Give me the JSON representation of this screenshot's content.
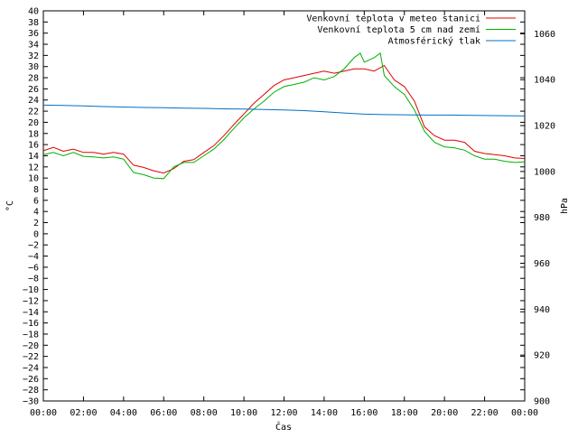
{
  "chart_data": {
    "type": "line",
    "xlabel": "Čas",
    "ylabel_left": "°C",
    "ylabel_right": "hPa",
    "ylim_left": [
      -30,
      40
    ],
    "ylim_right": [
      900,
      1070
    ],
    "xlim": [
      0,
      24
    ],
    "x_ticks": [
      {
        "v": 0,
        "label": "00:00"
      },
      {
        "v": 2,
        "label": "02:00"
      },
      {
        "v": 4,
        "label": "04:00"
      },
      {
        "v": 6,
        "label": "06:00"
      },
      {
        "v": 8,
        "label": "08:00"
      },
      {
        "v": 10,
        "label": "10:00"
      },
      {
        "v": 12,
        "label": "12:00"
      },
      {
        "v": 14,
        "label": "14:00"
      },
      {
        "v": 16,
        "label": "16:00"
      },
      {
        "v": 18,
        "label": "18:00"
      },
      {
        "v": 20,
        "label": "20:00"
      },
      {
        "v": 22,
        "label": "22:00"
      },
      {
        "v": 24,
        "label": "00:00"
      }
    ],
    "y_ticks_left": [
      40,
      38,
      36,
      34,
      32,
      30,
      28,
      26,
      24,
      22,
      20,
      18,
      16,
      14,
      12,
      10,
      8,
      6,
      4,
      2,
      0,
      -2,
      -4,
      -6,
      -8,
      -10,
      -12,
      -14,
      -16,
      -18,
      -20,
      -22,
      -24,
      -26,
      -28,
      -30
    ],
    "y_ticks_right": [
      1060,
      1040,
      1020,
      1000,
      980,
      960,
      940,
      920,
      900
    ],
    "grid": false,
    "legend_position": "top-right",
    "series": [
      {
        "name": "Venkovní teplota v meteo stanici",
        "color": "#e00000",
        "axis": "left",
        "x": [
          0,
          0.5,
          1,
          1.5,
          2,
          2.5,
          3,
          3.5,
          4,
          4.5,
          5,
          5.5,
          6,
          6.5,
          7,
          7.5,
          8,
          8.5,
          9,
          9.5,
          10,
          10.5,
          11,
          11.5,
          12,
          12.5,
          13,
          13.5,
          14,
          14.5,
          15,
          15.5,
          16,
          16.5,
          17,
          17.5,
          18,
          18.5,
          19,
          19.5,
          20,
          20.5,
          21,
          21.5,
          22,
          22.5,
          23,
          23.5,
          24
        ],
        "values": [
          14.9,
          15.5,
          14.8,
          15.2,
          14.6,
          14.6,
          14.3,
          14.6,
          14.3,
          12.3,
          11.9,
          11.3,
          10.9,
          11.7,
          13.0,
          13.3,
          14.6,
          15.8,
          17.6,
          19.6,
          21.5,
          23.4,
          25.0,
          26.6,
          27.6,
          28.0,
          28.4,
          28.8,
          29.2,
          28.8,
          29.2,
          29.6,
          29.6,
          29.2,
          30.2,
          27.6,
          26.4,
          23.8,
          19.2,
          17.6,
          16.8,
          16.8,
          16.4,
          14.8,
          14.4,
          14.2,
          14.0,
          13.6,
          13.5
        ]
      },
      {
        "name": "Venkovní teplota 5 cm nad zemí",
        "color": "#00b000",
        "axis": "left",
        "x": [
          0,
          0.5,
          1,
          1.5,
          2,
          2.5,
          3,
          3.5,
          4,
          4.5,
          5,
          5.5,
          6,
          6.5,
          7,
          7.5,
          8,
          8.5,
          9,
          9.5,
          10,
          10.5,
          11,
          11.5,
          12,
          12.5,
          13,
          13.5,
          14,
          14.5,
          15,
          15.5,
          15.8,
          16,
          16.5,
          16.8,
          17,
          17.5,
          18,
          18.5,
          19,
          19.5,
          20,
          20.5,
          21,
          21.5,
          22,
          22.5,
          23,
          23.5,
          24
        ],
        "values": [
          14.2,
          14.6,
          14.0,
          14.6,
          13.9,
          13.8,
          13.6,
          13.8,
          13.4,
          11.0,
          10.6,
          10.0,
          9.9,
          12.0,
          12.8,
          12.8,
          14.0,
          15.2,
          16.9,
          18.9,
          20.8,
          22.4,
          23.8,
          25.4,
          26.4,
          26.8,
          27.2,
          28.0,
          27.6,
          28.2,
          29.6,
          31.6,
          32.4,
          30.8,
          31.6,
          32.4,
          28.4,
          26.4,
          25.0,
          22.2,
          18.4,
          16.4,
          15.6,
          15.4,
          15.0,
          14.0,
          13.4,
          13.4,
          13.0,
          12.8,
          12.9
        ]
      },
      {
        "name": "Atmosférický tlak",
        "color": "#0070c0",
        "axis": "right",
        "x": [
          0,
          1,
          2,
          3,
          4,
          5,
          6,
          7,
          8,
          9,
          10,
          11,
          12,
          13,
          14,
          15,
          16,
          17,
          18,
          19,
          20,
          21,
          22,
          23,
          24
        ],
        "values": [
          1028.9,
          1028.8,
          1028.6,
          1028.3,
          1028.1,
          1027.9,
          1027.8,
          1027.6,
          1027.5,
          1027.3,
          1027.2,
          1027.0,
          1026.8,
          1026.5,
          1026.0,
          1025.5,
          1025.0,
          1024.8,
          1024.7,
          1024.6,
          1024.6,
          1024.5,
          1024.4,
          1024.3,
          1024.2
        ]
      }
    ]
  }
}
